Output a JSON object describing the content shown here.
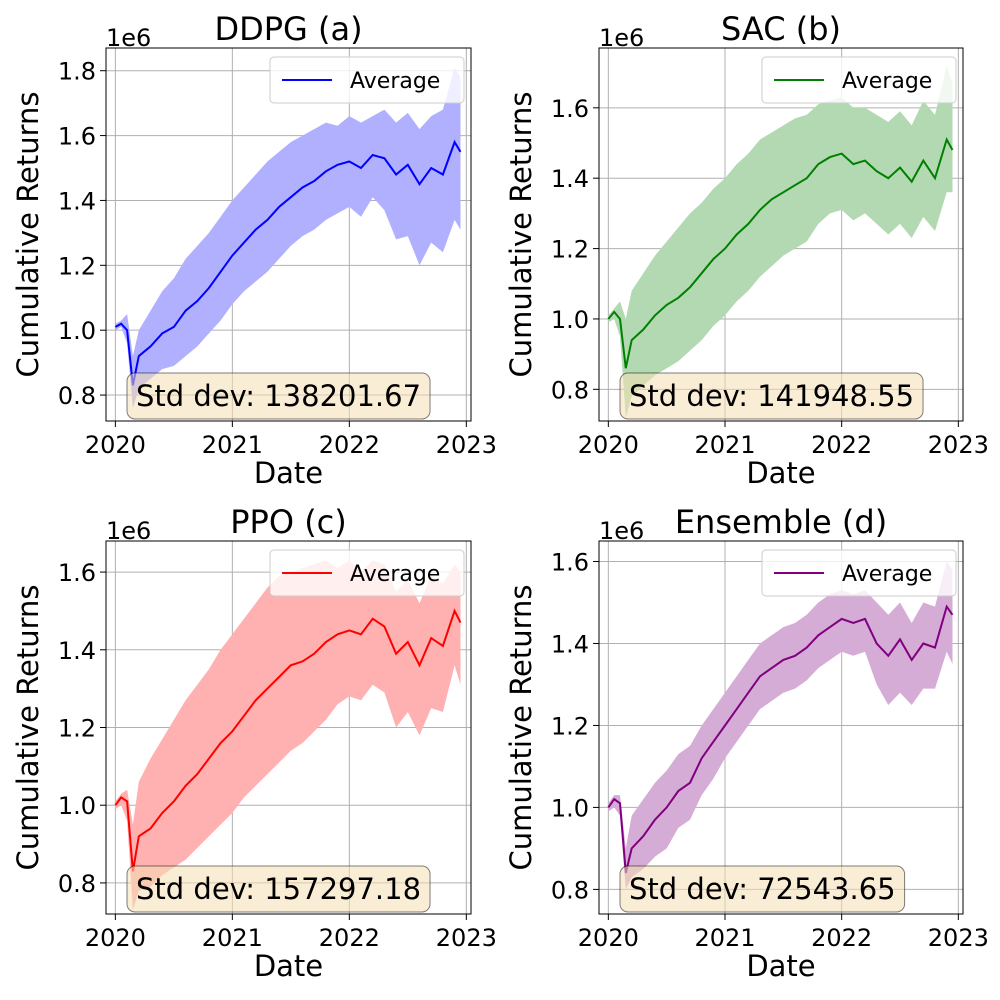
{
  "chart_data": [
    {
      "type": "line",
      "title": "DDPG (a)",
      "xlabel": "Date",
      "ylabel": "Cumulative Returns",
      "y_scale_label": "1e6",
      "x_ticks": [
        "2020",
        "2021",
        "2022",
        "2023"
      ],
      "y_ticks": [
        "0.8",
        "1.0",
        "1.2",
        "1.4",
        "1.6",
        "1.8"
      ],
      "xlim": [
        2019.92,
        2023.04
      ],
      "ylim": [
        0.72,
        1.87
      ],
      "grid": true,
      "legend_position": "top-right",
      "color": "#0000ff",
      "band_color": "#b0b0ff",
      "series": [
        {
          "name": "Average",
          "x": [
            2020.0,
            2020.05,
            2020.1,
            2020.15,
            2020.2,
            2020.3,
            2020.4,
            2020.5,
            2020.6,
            2020.7,
            2020.8,
            2020.9,
            2021.0,
            2021.1,
            2021.2,
            2021.3,
            2021.4,
            2021.5,
            2021.6,
            2021.7,
            2021.8,
            2021.9,
            2022.0,
            2022.1,
            2022.2,
            2022.3,
            2022.4,
            2022.5,
            2022.6,
            2022.7,
            2022.8,
            2022.9,
            2022.95
          ],
          "y": [
            1.01,
            1.02,
            1.0,
            0.83,
            0.92,
            0.95,
            0.99,
            1.01,
            1.06,
            1.09,
            1.13,
            1.18,
            1.23,
            1.27,
            1.31,
            1.34,
            1.38,
            1.41,
            1.44,
            1.46,
            1.49,
            1.51,
            1.52,
            1.5,
            1.54,
            1.53,
            1.48,
            1.51,
            1.45,
            1.5,
            1.48,
            1.58,
            1.55
          ]
        }
      ],
      "band_upper": [
        1.02,
        1.03,
        1.05,
        0.92,
        1.0,
        1.06,
        1.12,
        1.16,
        1.22,
        1.26,
        1.3,
        1.35,
        1.4,
        1.44,
        1.48,
        1.52,
        1.55,
        1.58,
        1.6,
        1.62,
        1.64,
        1.63,
        1.66,
        1.64,
        1.66,
        1.68,
        1.64,
        1.67,
        1.62,
        1.66,
        1.68,
        1.81,
        1.78
      ],
      "band_lower": [
        1.0,
        1.01,
        0.96,
        0.76,
        0.82,
        0.85,
        0.88,
        0.89,
        0.92,
        0.95,
        0.99,
        1.03,
        1.08,
        1.12,
        1.15,
        1.18,
        1.22,
        1.26,
        1.29,
        1.31,
        1.34,
        1.36,
        1.38,
        1.35,
        1.41,
        1.37,
        1.28,
        1.29,
        1.2,
        1.27,
        1.24,
        1.34,
        1.31
      ],
      "annotation": "Std dev: 138201.67"
    },
    {
      "type": "line",
      "title": "SAC (b)",
      "xlabel": "Date",
      "ylabel": "Cumulative Returns",
      "y_scale_label": "1e6",
      "x_ticks": [
        "2020",
        "2021",
        "2022",
        "2023"
      ],
      "y_ticks": [
        "0.8",
        "1.0",
        "1.2",
        "1.4",
        "1.6"
      ],
      "xlim": [
        2019.92,
        2023.04
      ],
      "ylim": [
        0.71,
        1.77
      ],
      "grid": true,
      "legend_position": "top-right",
      "color": "#008000",
      "band_color": "#b3d9b3",
      "series": [
        {
          "name": "Average",
          "x": [
            2020.0,
            2020.05,
            2020.1,
            2020.15,
            2020.2,
            2020.3,
            2020.4,
            2020.5,
            2020.6,
            2020.7,
            2020.8,
            2020.9,
            2021.0,
            2021.1,
            2021.2,
            2021.3,
            2021.4,
            2021.5,
            2021.6,
            2021.7,
            2021.8,
            2021.9,
            2022.0,
            2022.1,
            2022.2,
            2022.3,
            2022.4,
            2022.5,
            2022.6,
            2022.7,
            2022.8,
            2022.9,
            2022.95
          ],
          "y": [
            1.0,
            1.02,
            1.0,
            0.86,
            0.94,
            0.97,
            1.01,
            1.04,
            1.06,
            1.09,
            1.13,
            1.17,
            1.2,
            1.24,
            1.27,
            1.31,
            1.34,
            1.36,
            1.38,
            1.4,
            1.44,
            1.46,
            1.47,
            1.44,
            1.45,
            1.42,
            1.4,
            1.43,
            1.39,
            1.45,
            1.4,
            1.51,
            1.48
          ]
        }
      ],
      "band_upper": [
        1.01,
        1.03,
        1.05,
        1.0,
        1.08,
        1.13,
        1.18,
        1.22,
        1.26,
        1.3,
        1.33,
        1.37,
        1.4,
        1.44,
        1.47,
        1.51,
        1.53,
        1.55,
        1.57,
        1.58,
        1.61,
        1.62,
        1.63,
        1.6,
        1.6,
        1.58,
        1.56,
        1.59,
        1.55,
        1.62,
        1.58,
        1.72,
        1.67
      ],
      "band_lower": [
        0.99,
        1.0,
        0.95,
        0.72,
        0.78,
        0.81,
        0.84,
        0.86,
        0.88,
        0.91,
        0.94,
        0.98,
        1.01,
        1.05,
        1.08,
        1.12,
        1.15,
        1.18,
        1.2,
        1.22,
        1.27,
        1.3,
        1.31,
        1.28,
        1.3,
        1.27,
        1.24,
        1.27,
        1.23,
        1.29,
        1.25,
        1.36,
        1.36
      ],
      "annotation": "Std dev: 141948.55"
    },
    {
      "type": "line",
      "title": "PPO (c)",
      "xlabel": "Date",
      "ylabel": "Cumulative Returns",
      "y_scale_label": "1e6",
      "x_ticks": [
        "2020",
        "2021",
        "2022",
        "2023"
      ],
      "y_ticks": [
        "0.8",
        "1.0",
        "1.2",
        "1.4",
        "1.6"
      ],
      "xlim": [
        2019.92,
        2023.04
      ],
      "ylim": [
        0.72,
        1.68
      ],
      "grid": true,
      "legend_position": "top-right",
      "color": "#ff0000",
      "band_color": "#ffb0b0",
      "series": [
        {
          "name": "Average",
          "x": [
            2020.0,
            2020.05,
            2020.1,
            2020.15,
            2020.2,
            2020.3,
            2020.4,
            2020.5,
            2020.6,
            2020.7,
            2020.8,
            2020.9,
            2021.0,
            2021.1,
            2021.2,
            2021.3,
            2021.4,
            2021.5,
            2021.6,
            2021.7,
            2021.8,
            2021.9,
            2022.0,
            2022.1,
            2022.2,
            2022.3,
            2022.4,
            2022.5,
            2022.6,
            2022.7,
            2022.8,
            2022.9,
            2022.95
          ],
          "y": [
            1.0,
            1.02,
            1.01,
            0.83,
            0.92,
            0.94,
            0.98,
            1.01,
            1.05,
            1.08,
            1.12,
            1.16,
            1.19,
            1.23,
            1.27,
            1.3,
            1.33,
            1.36,
            1.37,
            1.39,
            1.42,
            1.44,
            1.45,
            1.44,
            1.48,
            1.46,
            1.39,
            1.42,
            1.36,
            1.43,
            1.41,
            1.5,
            1.47
          ]
        }
      ],
      "band_upper": [
        1.01,
        1.03,
        1.04,
        0.95,
        1.06,
        1.12,
        1.17,
        1.22,
        1.27,
        1.31,
        1.35,
        1.4,
        1.44,
        1.48,
        1.52,
        1.56,
        1.59,
        1.6,
        1.61,
        1.62,
        1.63,
        1.61,
        1.63,
        1.6,
        1.63,
        1.62,
        1.55,
        1.58,
        1.52,
        1.59,
        1.57,
        1.62,
        1.6
      ],
      "band_lower": [
        0.99,
        1.0,
        0.96,
        0.73,
        0.78,
        0.79,
        0.82,
        0.84,
        0.86,
        0.89,
        0.92,
        0.95,
        0.98,
        1.02,
        1.05,
        1.08,
        1.11,
        1.14,
        1.16,
        1.19,
        1.22,
        1.26,
        1.28,
        1.27,
        1.31,
        1.29,
        1.2,
        1.24,
        1.18,
        1.25,
        1.24,
        1.36,
        1.31
      ],
      "annotation": "Std dev: 157297.18"
    },
    {
      "type": "line",
      "title": "Ensemble (d)",
      "xlabel": "Date",
      "ylabel": "Cumulative Returns",
      "y_scale_label": "1e6",
      "x_ticks": [
        "2020",
        "2021",
        "2022",
        "2023"
      ],
      "y_ticks": [
        "0.8",
        "1.0",
        "1.2",
        "1.4",
        "1.6"
      ],
      "xlim": [
        2019.92,
        2023.04
      ],
      "ylim": [
        0.74,
        1.65
      ],
      "grid": true,
      "legend_position": "top-right",
      "color": "#800080",
      "band_color": "#d5acd5",
      "series": [
        {
          "name": "Average",
          "x": [
            2020.0,
            2020.05,
            2020.1,
            2020.15,
            2020.2,
            2020.3,
            2020.4,
            2020.5,
            2020.6,
            2020.7,
            2020.8,
            2020.9,
            2021.0,
            2021.1,
            2021.2,
            2021.3,
            2021.4,
            2021.5,
            2021.6,
            2021.7,
            2021.8,
            2021.9,
            2022.0,
            2022.1,
            2022.2,
            2022.3,
            2022.4,
            2022.5,
            2022.6,
            2022.7,
            2022.8,
            2022.9,
            2022.95
          ],
          "y": [
            1.0,
            1.02,
            1.01,
            0.84,
            0.9,
            0.93,
            0.97,
            1.0,
            1.04,
            1.06,
            1.12,
            1.16,
            1.2,
            1.24,
            1.28,
            1.32,
            1.34,
            1.36,
            1.37,
            1.39,
            1.42,
            1.44,
            1.46,
            1.45,
            1.46,
            1.4,
            1.37,
            1.41,
            1.36,
            1.4,
            1.39,
            1.49,
            1.47
          ]
        }
      ],
      "band_upper": [
        1.01,
        1.03,
        1.03,
        0.9,
        0.98,
        1.02,
        1.06,
        1.09,
        1.13,
        1.15,
        1.2,
        1.24,
        1.28,
        1.32,
        1.36,
        1.4,
        1.42,
        1.44,
        1.45,
        1.47,
        1.5,
        1.52,
        1.53,
        1.52,
        1.53,
        1.5,
        1.47,
        1.5,
        1.45,
        1.5,
        1.49,
        1.6,
        1.58
      ],
      "band_lower": [
        0.99,
        1.0,
        0.98,
        0.8,
        0.83,
        0.85,
        0.88,
        0.9,
        0.95,
        0.97,
        1.03,
        1.07,
        1.12,
        1.16,
        1.2,
        1.24,
        1.26,
        1.28,
        1.29,
        1.31,
        1.34,
        1.36,
        1.38,
        1.37,
        1.38,
        1.3,
        1.25,
        1.28,
        1.25,
        1.29,
        1.29,
        1.38,
        1.35
      ],
      "annotation": "Std dev: 72543.65"
    }
  ]
}
